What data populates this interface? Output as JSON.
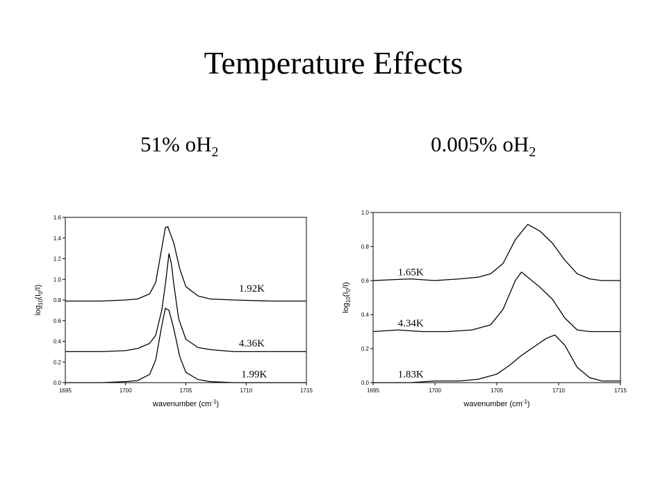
{
  "slide": {
    "title": "Temperature Effects",
    "subtitle_left_main": "51% oH",
    "subtitle_left_sub": "2",
    "subtitle_right_main": "0.005% oH",
    "subtitle_right_sub": "2"
  },
  "chart_data": [
    {
      "type": "line",
      "title": "",
      "xlabel": "wavenumber (cm-1)",
      "ylabel": "log10(I0/I)",
      "xlim": [
        1695,
        1715
      ],
      "ylim": [
        0.0,
        1.6
      ],
      "xticks": [
        "1695",
        "1700",
        "1705",
        "1710",
        "1715"
      ],
      "yticks": [
        "0.0",
        "0.2",
        "0.4",
        "0.6",
        "0.8",
        "1.0",
        "1.2",
        "1.4",
        "1.6"
      ],
      "grid": false,
      "series": [
        {
          "name": "1.92K",
          "x": [
            1695,
            1698,
            1700,
            1701,
            1702,
            1702.5,
            1703,
            1703.3,
            1703.5,
            1704,
            1704.5,
            1705,
            1706,
            1707,
            1709,
            1712,
            1715
          ],
          "y": [
            0.79,
            0.79,
            0.8,
            0.81,
            0.86,
            0.97,
            1.3,
            1.5,
            1.51,
            1.35,
            1.1,
            0.93,
            0.84,
            0.81,
            0.8,
            0.79,
            0.79
          ]
        },
        {
          "name": "4.36K",
          "x": [
            1695,
            1698,
            1700,
            1701,
            1702,
            1702.5,
            1703,
            1703.3,
            1703.6,
            1703.8,
            1704,
            1704.4,
            1705,
            1706,
            1707,
            1709,
            1712,
            1715
          ],
          "y": [
            0.3,
            0.3,
            0.31,
            0.33,
            0.38,
            0.46,
            0.7,
            0.95,
            1.25,
            1.15,
            0.95,
            0.62,
            0.42,
            0.34,
            0.32,
            0.3,
            0.3,
            0.3
          ]
        },
        {
          "name": "1.99K",
          "x": [
            1695,
            1698,
            1700,
            1701,
            1702,
            1702.5,
            1703,
            1703.3,
            1703.6,
            1704,
            1704.5,
            1705,
            1706,
            1707,
            1709,
            1712,
            1715
          ],
          "y": [
            0.0,
            0.0,
            0.01,
            0.02,
            0.08,
            0.22,
            0.55,
            0.72,
            0.7,
            0.52,
            0.25,
            0.1,
            0.03,
            0.01,
            0.0,
            0.0,
            0.0
          ]
        }
      ],
      "curve_labels": [
        {
          "text": "1.92K",
          "x": 1709.4,
          "y": 0.88
        },
        {
          "text": "4.36K",
          "x": 1709.4,
          "y": 0.35
        },
        {
          "text": "1.99K",
          "x": 1709.6,
          "y": 0.05
        }
      ]
    },
    {
      "type": "line",
      "title": "",
      "xlabel": "wavenumber (cm-1)",
      "ylabel": "log10(I0/I)",
      "xlim": [
        1695,
        1715
      ],
      "ylim": [
        0.0,
        1.0
      ],
      "xticks": [
        "1695",
        "1700",
        "1705",
        "1710",
        "1715"
      ],
      "yticks": [
        "0.0",
        "0.2",
        "0.4",
        "0.6",
        "0.8",
        "1.0"
      ],
      "grid": false,
      "series": [
        {
          "name": "1.65K",
          "x": [
            1695,
            1698,
            1700,
            1702,
            1703.5,
            1704.5,
            1705.5,
            1706.5,
            1707.5,
            1708.5,
            1709.5,
            1710.5,
            1711.5,
            1712.5,
            1713.5,
            1715
          ],
          "y": [
            0.6,
            0.61,
            0.6,
            0.61,
            0.62,
            0.64,
            0.7,
            0.84,
            0.93,
            0.89,
            0.82,
            0.72,
            0.64,
            0.61,
            0.6,
            0.6
          ]
        },
        {
          "name": "4.34K",
          "x": [
            1695,
            1697,
            1699,
            1701,
            1703,
            1704.5,
            1705.5,
            1706.5,
            1707,
            1707.5,
            1708.5,
            1709.5,
            1710.5,
            1711.5,
            1712.5,
            1713.5,
            1715
          ],
          "y": [
            0.3,
            0.31,
            0.3,
            0.3,
            0.31,
            0.34,
            0.43,
            0.6,
            0.65,
            0.62,
            0.56,
            0.49,
            0.38,
            0.31,
            0.3,
            0.3,
            0.3
          ]
        },
        {
          "name": "1.83K",
          "x": [
            1695,
            1698,
            1700,
            1702,
            1703.5,
            1705,
            1706,
            1707,
            1708,
            1709,
            1709.7,
            1710.5,
            1711.5,
            1712.5,
            1713.5,
            1715
          ],
          "y": [
            0.0,
            0.0,
            0.01,
            0.01,
            0.02,
            0.05,
            0.1,
            0.16,
            0.21,
            0.26,
            0.28,
            0.22,
            0.09,
            0.03,
            0.01,
            0.01
          ]
        }
      ],
      "curve_labels": [
        {
          "text": "1.65K",
          "x": 1697.0,
          "y": 0.63
        },
        {
          "text": "4.34K",
          "x": 1697.0,
          "y": 0.33
        },
        {
          "text": "1.83K",
          "x": 1697.0,
          "y": 0.03
        }
      ]
    }
  ]
}
